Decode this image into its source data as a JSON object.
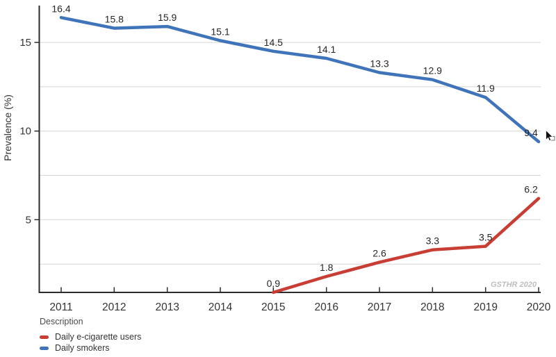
{
  "chart_data": {
    "type": "line",
    "title": "",
    "ylabel": "Prevalence (%)",
    "xlabel": "",
    "watermark": "GSTHR 2020",
    "x_years": [
      2011,
      2012,
      2013,
      2014,
      2015,
      2016,
      2017,
      2018,
      2019,
      2020
    ],
    "xlim": [
      2011,
      2020
    ],
    "ylim": [
      0.9,
      17.0
    ],
    "yticks": [
      5,
      10,
      15
    ],
    "gridline_values": [
      2.5,
      5,
      7.5,
      10,
      12.5,
      15
    ],
    "grid": true,
    "legend_position": "bottom-left",
    "series": [
      {
        "name": "Daily smokers",
        "color": "#3F74BA",
        "points": [
          {
            "x": 2011,
            "y": 16.4
          },
          {
            "x": 2012,
            "y": 15.8
          },
          {
            "x": 2013,
            "y": 15.9
          },
          {
            "x": 2014,
            "y": 15.1
          },
          {
            "x": 2015,
            "y": 14.5
          },
          {
            "x": 2016,
            "y": 14.1
          },
          {
            "x": 2017,
            "y": 13.3
          },
          {
            "x": 2018,
            "y": 12.9
          },
          {
            "x": 2019,
            "y": 11.9
          },
          {
            "x": 2020,
            "y": 9.4
          }
        ]
      },
      {
        "name": "Daily e-cigarette users",
        "color": "#C83E34",
        "points": [
          {
            "x": 2015,
            "y": 0.9
          },
          {
            "x": 2016,
            "y": 1.8
          },
          {
            "x": 2017,
            "y": 2.6
          },
          {
            "x": 2018,
            "y": 3.3
          },
          {
            "x": 2019,
            "y": 3.5
          },
          {
            "x": 2020,
            "y": 6.2
          }
        ]
      }
    ],
    "colors": {
      "grid": "#D5D5D5",
      "axis": "#2B2B2B",
      "tick_text": "#333333",
      "data_label": "#262626",
      "axis_title": "#333333",
      "watermark": "#BEBEBE"
    }
  },
  "legend": {
    "title": "Description",
    "items": [
      {
        "label": "Daily e-cigarette users",
        "color": "#C83E34"
      },
      {
        "label": "Daily smokers",
        "color": "#3F74BA"
      }
    ]
  }
}
